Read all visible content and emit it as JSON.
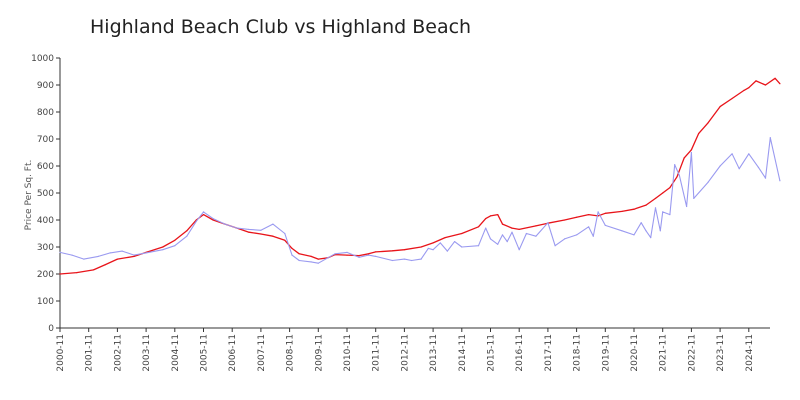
{
  "chart_data": {
    "type": "line",
    "title": "Highland Beach Club vs Highland Beach",
    "ylabel": "Price Per Sq. Ft.",
    "xlabel": "",
    "ylim": [
      0,
      1000
    ],
    "yticks": [
      0,
      100,
      200,
      300,
      400,
      500,
      600,
      700,
      800,
      900,
      1000
    ],
    "x_ticks": [
      "2000-11",
      "2001-11",
      "2002-11",
      "2003-11",
      "2004-11",
      "2005-11",
      "2006-11",
      "2007-11",
      "2008-11",
      "2009-11",
      "2010-11",
      "2011-11",
      "2012-11",
      "2013-11",
      "2014-11",
      "2015-11",
      "2016-11",
      "2017-11",
      "2018-11",
      "2019-11",
      "2020-11",
      "2021-11",
      "2022-11",
      "2023-11",
      "2024-11"
    ],
    "grid": false,
    "legend": "none",
    "series": [
      {
        "color": "#e8141a",
        "points": [
          [
            "2000-11",
            200
          ],
          [
            "2001-06",
            205
          ],
          [
            "2002-01",
            215
          ],
          [
            "2002-06",
            235
          ],
          [
            "2002-11",
            255
          ],
          [
            "2003-06",
            265
          ],
          [
            "2003-11",
            280
          ],
          [
            "2004-06",
            300
          ],
          [
            "2004-11",
            325
          ],
          [
            "2005-04",
            360
          ],
          [
            "2005-08",
            400
          ],
          [
            "2005-11",
            420
          ],
          [
            "2006-03",
            400
          ],
          [
            "2006-08",
            385
          ],
          [
            "2007-01",
            370
          ],
          [
            "2007-06",
            355
          ],
          [
            "2007-11",
            348
          ],
          [
            "2008-04",
            340
          ],
          [
            "2008-09",
            325
          ],
          [
            "2008-12",
            295
          ],
          [
            "2009-03",
            275
          ],
          [
            "2009-08",
            265
          ],
          [
            "2009-11",
            255
          ],
          [
            "2010-03",
            260
          ],
          [
            "2010-06",
            272
          ],
          [
            "2010-11",
            270
          ],
          [
            "2011-04",
            268
          ],
          [
            "2011-08",
            275
          ],
          [
            "2011-11",
            282
          ],
          [
            "2012-06",
            286
          ],
          [
            "2012-11",
            290
          ],
          [
            "2013-06",
            300
          ],
          [
            "2013-11",
            315
          ],
          [
            "2014-04",
            335
          ],
          [
            "2014-11",
            350
          ],
          [
            "2015-06",
            375
          ],
          [
            "2015-09",
            405
          ],
          [
            "2015-11",
            415
          ],
          [
            "2016-02",
            420
          ],
          [
            "2016-04",
            385
          ],
          [
            "2016-08",
            370
          ],
          [
            "2016-11",
            365
          ],
          [
            "2017-06",
            378
          ],
          [
            "2017-11",
            388
          ],
          [
            "2018-06",
            400
          ],
          [
            "2018-11",
            410
          ],
          [
            "2019-04",
            420
          ],
          [
            "2019-08",
            415
          ],
          [
            "2019-11",
            425
          ],
          [
            "2020-06",
            432
          ],
          [
            "2020-11",
            440
          ],
          [
            "2021-04",
            455
          ],
          [
            "2021-08",
            480
          ],
          [
            "2021-11",
            500
          ],
          [
            "2022-02",
            520
          ],
          [
            "2022-05",
            560
          ],
          [
            "2022-08",
            630
          ],
          [
            "2022-11",
            660
          ],
          [
            "2023-02",
            720
          ],
          [
            "2023-06",
            760
          ],
          [
            "2023-11",
            820
          ],
          [
            "2024-04",
            850
          ],
          [
            "2024-09",
            880
          ],
          [
            "2024-11",
            890
          ],
          [
            "2025-02",
            915
          ],
          [
            "2025-06",
            900
          ],
          [
            "2025-10",
            925
          ],
          [
            "2025-12",
            905
          ]
        ]
      },
      {
        "color": "#9a9af0",
        "points": [
          [
            "2000-11",
            280
          ],
          [
            "2001-04",
            270
          ],
          [
            "2001-09",
            255
          ],
          [
            "2002-03",
            265
          ],
          [
            "2002-08",
            278
          ],
          [
            "2003-01",
            285
          ],
          [
            "2003-06",
            270
          ],
          [
            "2003-11",
            278
          ],
          [
            "2004-06",
            290
          ],
          [
            "2004-11",
            305
          ],
          [
            "2005-04",
            340
          ],
          [
            "2005-08",
            395
          ],
          [
            "2005-11",
            430
          ],
          [
            "2006-03",
            405
          ],
          [
            "2006-08",
            385
          ],
          [
            "2007-01",
            370
          ],
          [
            "2007-06",
            365
          ],
          [
            "2007-11",
            362
          ],
          [
            "2008-04",
            385
          ],
          [
            "2008-09",
            350
          ],
          [
            "2008-12",
            270
          ],
          [
            "2009-03",
            250
          ],
          [
            "2009-08",
            245
          ],
          [
            "2009-11",
            240
          ],
          [
            "2010-03",
            260
          ],
          [
            "2010-06",
            275
          ],
          [
            "2010-11",
            280
          ],
          [
            "2011-04",
            262
          ],
          [
            "2011-08",
            270
          ],
          [
            "2011-11",
            265
          ],
          [
            "2012-06",
            250
          ],
          [
            "2012-11",
            255
          ],
          [
            "2013-02",
            250
          ],
          [
            "2013-06",
            255
          ],
          [
            "2013-09",
            295
          ],
          [
            "2013-11",
            290
          ],
          [
            "2014-02",
            315
          ],
          [
            "2014-05",
            285
          ],
          [
            "2014-08",
            320
          ],
          [
            "2014-11",
            300
          ],
          [
            "2015-06",
            305
          ],
          [
            "2015-09",
            370
          ],
          [
            "2015-11",
            330
          ],
          [
            "2016-02",
            310
          ],
          [
            "2016-04",
            345
          ],
          [
            "2016-06",
            320
          ],
          [
            "2016-08",
            355
          ],
          [
            "2016-11",
            290
          ],
          [
            "2017-02",
            350
          ],
          [
            "2017-06",
            340
          ],
          [
            "2017-11",
            390
          ],
          [
            "2018-02",
            305
          ],
          [
            "2018-06",
            330
          ],
          [
            "2018-11",
            345
          ],
          [
            "2019-04",
            375
          ],
          [
            "2019-06",
            340
          ],
          [
            "2019-08",
            430
          ],
          [
            "2019-11",
            380
          ],
          [
            "2020-06",
            360
          ],
          [
            "2020-11",
            345
          ],
          [
            "2021-02",
            390
          ],
          [
            "2021-04",
            360
          ],
          [
            "2021-06",
            335
          ],
          [
            "2021-08",
            445
          ],
          [
            "2021-10",
            360
          ],
          [
            "2021-11",
            430
          ],
          [
            "2022-02",
            420
          ],
          [
            "2022-04",
            605
          ],
          [
            "2022-06",
            565
          ],
          [
            "2022-09",
            450
          ],
          [
            "2022-11",
            650
          ],
          [
            "2022-12",
            480
          ],
          [
            "2023-06",
            540
          ],
          [
            "2023-11",
            600
          ],
          [
            "2024-04",
            645
          ],
          [
            "2024-07",
            590
          ],
          [
            "2024-11",
            645
          ],
          [
            "2025-03",
            595
          ],
          [
            "2025-06",
            555
          ],
          [
            "2025-08",
            705
          ],
          [
            "2025-12",
            545
          ]
        ]
      }
    ]
  }
}
